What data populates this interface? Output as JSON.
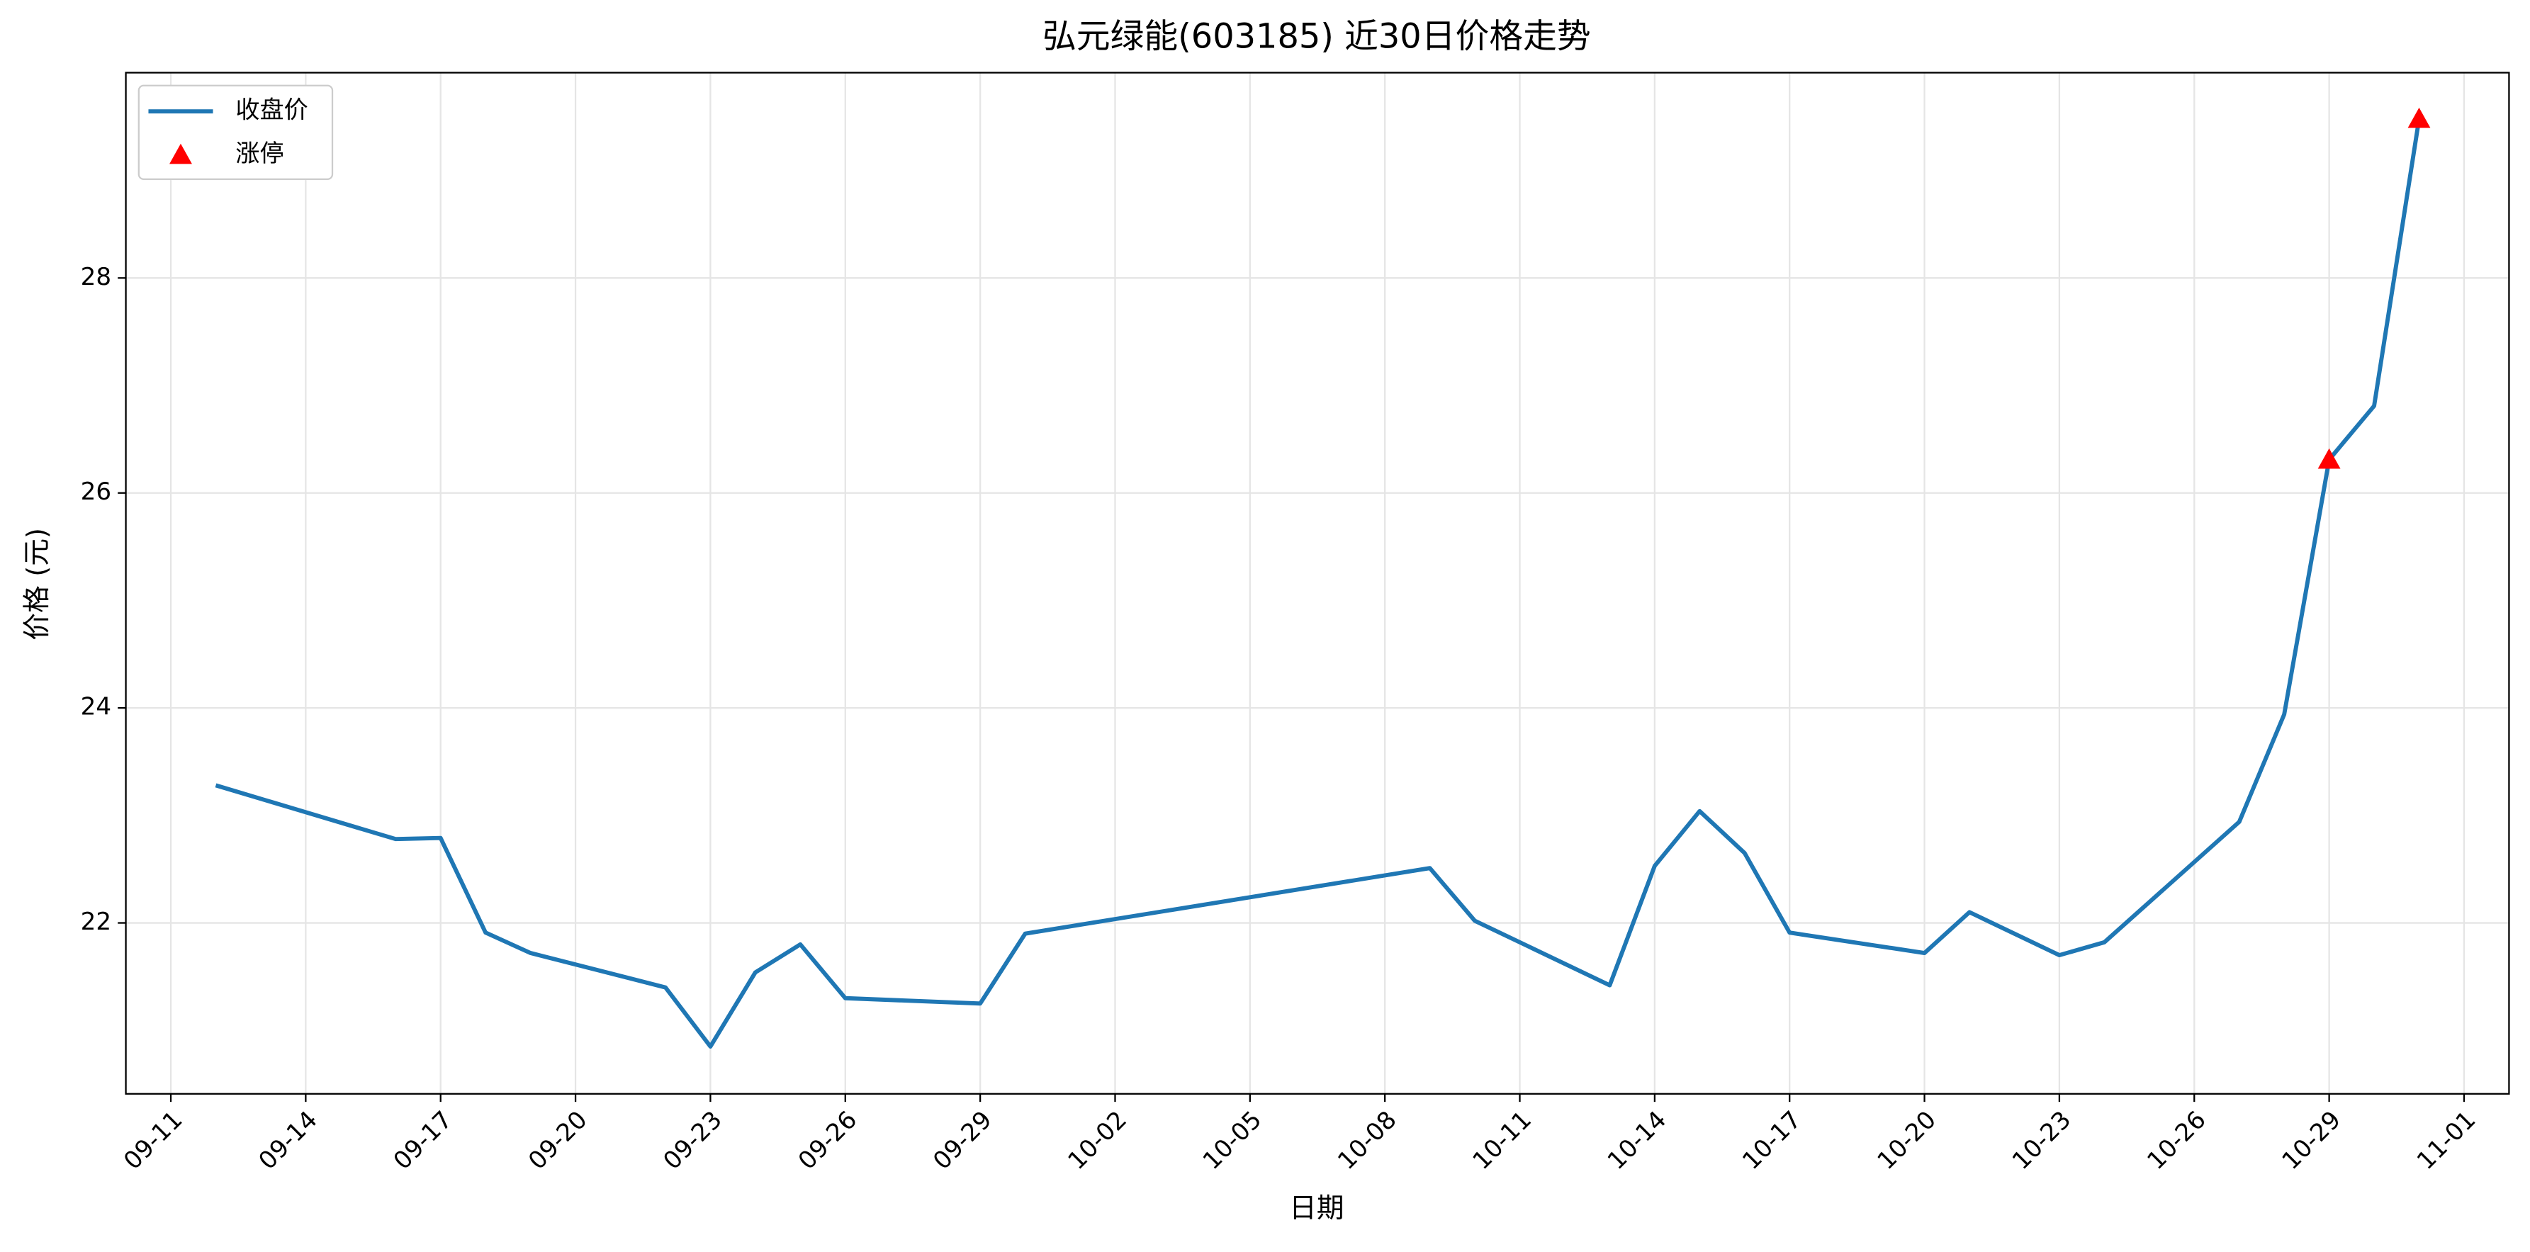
{
  "chart_data": {
    "type": "line",
    "title": "弘元绿能(603185) 近30日价格走势",
    "x_label": "日期",
    "y_label": "价格 (元)",
    "x": [
      "09-12",
      "09-16",
      "09-17",
      "09-18",
      "09-19",
      "09-22",
      "09-23",
      "09-24",
      "09-25",
      "09-26",
      "09-29",
      "09-30",
      "10-09",
      "10-10",
      "10-13",
      "10-14",
      "10-15",
      "10-16",
      "10-17",
      "10-20",
      "10-21",
      "10-23",
      "10-24",
      "10-27",
      "10-28",
      "10-29",
      "10-30",
      "10-31"
    ],
    "series": [
      {
        "name": "收盘价",
        "color": "#1f77b4",
        "values": [
          23.28,
          22.78,
          22.79,
          21.91,
          21.72,
          21.4,
          20.85,
          21.54,
          21.8,
          21.3,
          21.25,
          21.9,
          22.51,
          22.02,
          21.42,
          22.53,
          23.04,
          22.65,
          21.91,
          21.72,
          22.1,
          21.7,
          21.82,
          22.94,
          23.94,
          26.31,
          26.81,
          29.48
        ]
      },
      {
        "name": "涨停",
        "color": "#ff0000",
        "marker": "triangle",
        "x": [
          "10-29",
          "10-31"
        ],
        "values": [
          26.31,
          29.48
        ]
      }
    ],
    "xlim": [
      "09-10",
      "11-02"
    ],
    "xticks": [
      "09-11",
      "09-14",
      "09-17",
      "09-20",
      "09-23",
      "09-26",
      "09-29",
      "10-02",
      "10-05",
      "10-08",
      "10-11",
      "10-14",
      "10-17",
      "10-20",
      "10-23",
      "10-26",
      "10-29",
      "11-01"
    ],
    "ylim": [
      20.41,
      29.91
    ],
    "yticks": [
      22,
      24,
      26,
      28
    ],
    "grid": true,
    "legend": "upper left"
  }
}
